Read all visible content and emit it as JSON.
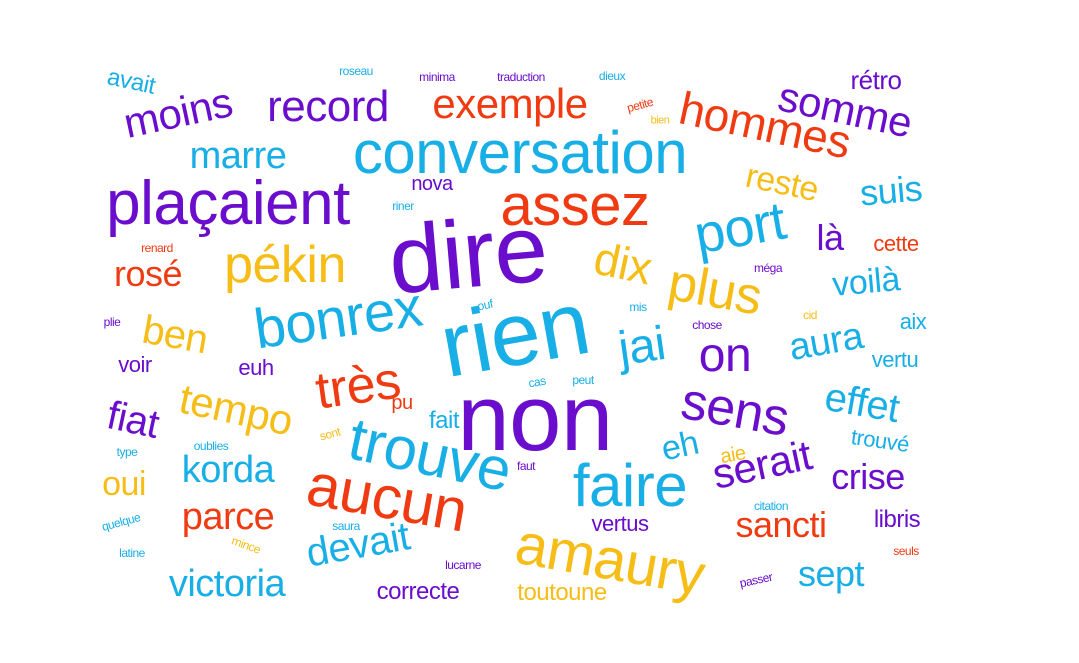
{
  "colors": {
    "purple": "#6a0dcc",
    "blue": "#18aee6",
    "orange": "#f7bd17",
    "red": "#f03a12"
  },
  "words": [
    {
      "text": "dire",
      "color": "purple",
      "weight": 100
    },
    {
      "text": "non",
      "color": "purple",
      "weight": 98
    },
    {
      "text": "rien",
      "color": "blue",
      "weight": 96
    },
    {
      "text": "plaçaient",
      "color": "purple",
      "weight": 66
    },
    {
      "text": "conversation",
      "color": "blue",
      "weight": 62
    },
    {
      "text": "trouve",
      "color": "blue",
      "weight": 62
    },
    {
      "text": "aucun",
      "color": "red",
      "weight": 62
    },
    {
      "text": "faire",
      "color": "blue",
      "weight": 62
    },
    {
      "text": "amaury",
      "color": "orange",
      "weight": 62
    },
    {
      "text": "assez",
      "color": "red",
      "weight": 60
    },
    {
      "text": "port",
      "color": "blue",
      "weight": 58
    },
    {
      "text": "bonrex",
      "color": "blue",
      "weight": 58
    },
    {
      "text": "pékin",
      "color": "orange",
      "weight": 56
    },
    {
      "text": "plus",
      "color": "orange",
      "weight": 56
    },
    {
      "text": "très",
      "color": "red",
      "weight": 56
    },
    {
      "text": "sens",
      "color": "purple",
      "weight": 56
    },
    {
      "text": "jai",
      "color": "blue",
      "weight": 52
    },
    {
      "text": "on",
      "color": "purple",
      "weight": 52
    },
    {
      "text": "hommes",
      "color": "red",
      "weight": 50
    },
    {
      "text": "dix",
      "color": "orange",
      "weight": 50
    },
    {
      "text": "record",
      "color": "purple",
      "weight": 48
    },
    {
      "text": "exemple",
      "color": "red",
      "weight": 48
    },
    {
      "text": "moins",
      "color": "purple",
      "weight": 46
    },
    {
      "text": "somme",
      "color": "purple",
      "weight": 46
    },
    {
      "text": "tempo",
      "color": "orange",
      "weight": 46
    },
    {
      "text": "serait",
      "color": "purple",
      "weight": 46
    },
    {
      "text": "marre",
      "color": "blue",
      "weight": 44
    },
    {
      "text": "ben",
      "color": "orange",
      "weight": 44
    },
    {
      "text": "effet",
      "color": "blue",
      "weight": 44
    },
    {
      "text": "parce",
      "color": "red",
      "weight": 42
    },
    {
      "text": "korda",
      "color": "blue",
      "weight": 42
    },
    {
      "text": "devait",
      "color": "blue",
      "weight": 42
    },
    {
      "text": "victoria",
      "color": "blue",
      "weight": 42
    },
    {
      "text": "aura",
      "color": "blue",
      "weight": 42
    },
    {
      "text": "suis",
      "color": "blue",
      "weight": 42
    },
    {
      "text": "reste",
      "color": "orange",
      "weight": 40
    },
    {
      "text": "là",
      "color": "purple",
      "weight": 40
    },
    {
      "text": "voilà",
      "color": "blue",
      "weight": 40
    },
    {
      "text": "fiat",
      "color": "purple",
      "weight": 40
    },
    {
      "text": "rosé",
      "color": "red",
      "weight": 40
    },
    {
      "text": "crise",
      "color": "purple",
      "weight": 40
    },
    {
      "text": "sept",
      "color": "blue",
      "weight": 40
    },
    {
      "text": "sancti",
      "color": "red",
      "weight": 38
    },
    {
      "text": "oui",
      "color": "orange",
      "weight": 38
    },
    {
      "text": "eh",
      "color": "blue",
      "weight": 36
    },
    {
      "text": "rétro",
      "color": "purple",
      "weight": 30
    },
    {
      "text": "avait",
      "color": "blue",
      "weight": 26
    },
    {
      "text": "cette",
      "color": "red",
      "weight": 26
    },
    {
      "text": "aix",
      "color": "blue",
      "weight": 28
    },
    {
      "text": "vertu",
      "color": "blue",
      "weight": 26
    },
    {
      "text": "trouvé",
      "color": "blue",
      "weight": 26
    },
    {
      "text": "libris",
      "color": "purple",
      "weight": 28
    },
    {
      "text": "vertus",
      "color": "purple",
      "weight": 26
    },
    {
      "text": "fait",
      "color": "blue",
      "weight": 28
    },
    {
      "text": "pu",
      "color": "red",
      "weight": 24
    },
    {
      "text": "aie",
      "color": "orange",
      "weight": 24
    },
    {
      "text": "nova",
      "color": "purple",
      "weight": 26
    },
    {
      "text": "euh",
      "color": "purple",
      "weight": 28
    },
    {
      "text": "voir",
      "color": "purple",
      "weight": 28
    },
    {
      "text": "correcte",
      "color": "purple",
      "weight": 28
    },
    {
      "text": "toutoune",
      "color": "orange",
      "weight": 28
    },
    {
      "text": "roseau",
      "color": "blue",
      "weight": 12
    },
    {
      "text": "minima",
      "color": "purple",
      "weight": 13
    },
    {
      "text": "traduction",
      "color": "purple",
      "weight": 13
    },
    {
      "text": "dieux",
      "color": "blue",
      "weight": 13
    },
    {
      "text": "petite",
      "color": "red",
      "weight": 12
    },
    {
      "text": "bien",
      "color": "orange",
      "weight": 12
    },
    {
      "text": "riner",
      "color": "blue",
      "weight": 12
    },
    {
      "text": "renard",
      "color": "red",
      "weight": 12
    },
    {
      "text": "méga",
      "color": "purple",
      "weight": 12
    },
    {
      "text": "plie",
      "color": "purple",
      "weight": 12
    },
    {
      "text": "ouf",
      "color": "blue",
      "weight": 12
    },
    {
      "text": "mis",
      "color": "blue",
      "weight": 12
    },
    {
      "text": "cid",
      "color": "orange",
      "weight": 12
    },
    {
      "text": "chose",
      "color": "purple",
      "weight": 12
    },
    {
      "text": "cas",
      "color": "blue",
      "weight": 12
    },
    {
      "text": "peut",
      "color": "blue",
      "weight": 12
    },
    {
      "text": "sont",
      "color": "orange",
      "weight": 12
    },
    {
      "text": "type",
      "color": "blue",
      "weight": 12
    },
    {
      "text": "oublies",
      "color": "blue",
      "weight": 12
    },
    {
      "text": "faut",
      "color": "purple",
      "weight": 12
    },
    {
      "text": "citation",
      "color": "blue",
      "weight": 12
    },
    {
      "text": "quelque",
      "color": "blue",
      "weight": 12
    },
    {
      "text": "saura",
      "color": "blue",
      "weight": 12
    },
    {
      "text": "latine",
      "color": "blue",
      "weight": 12
    },
    {
      "text": "mince",
      "color": "orange",
      "weight": 12
    },
    {
      "text": "lucarne",
      "color": "purple",
      "weight": 12
    },
    {
      "text": "passer",
      "color": "purple",
      "weight": 12
    },
    {
      "text": "seuls",
      "color": "red",
      "weight": 12
    }
  ]
}
